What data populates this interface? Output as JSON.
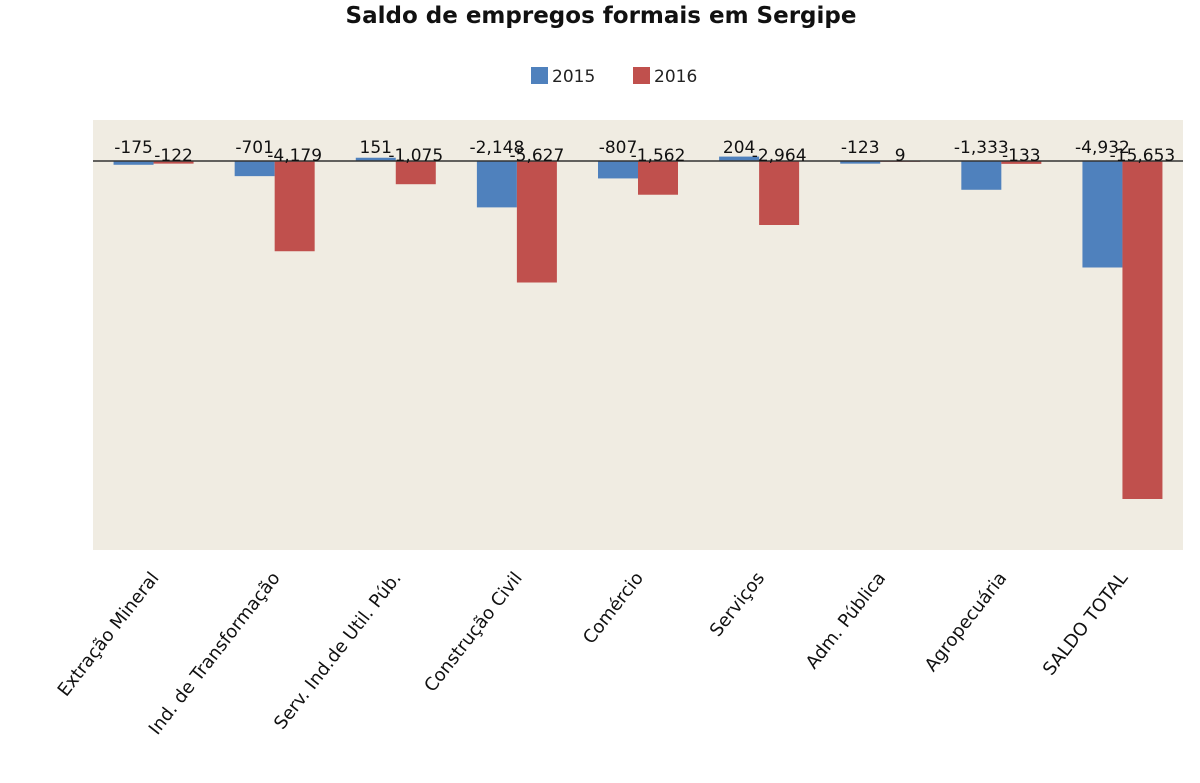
{
  "chart_data": {
    "type": "bar",
    "title": "Saldo de empregos formais em Sergipe",
    "xlabel": "",
    "ylabel": "",
    "categories": [
      "Extração Mineral",
      "Ind. de Transformação",
      "Serv. Ind.de Util. Púb.",
      "Construção Civil",
      "Comércio",
      "Serviços",
      "Adm. Pública",
      "Agropecuária",
      "SALDO TOTAL"
    ],
    "series": [
      {
        "name": "2015",
        "color": "#4f81bd",
        "values": [
          -175,
          -701,
          151,
          -2148,
          -807,
          204,
          -123,
          -1333,
          -4932
        ],
        "labels": [
          "-175",
          "-701",
          "151",
          "-2,148",
          "-807",
          "204",
          "-123",
          "-1,333",
          "-4,932"
        ]
      },
      {
        "name": "2016",
        "color": "#c0504d",
        "values": [
          -122,
          -4179,
          -1075,
          -5627,
          -1562,
          -2964,
          9,
          -133,
          -15653
        ],
        "labels": [
          "-122",
          "-4,179",
          "-1,075",
          "-5,627",
          "-1,562",
          "-2,964",
          "9",
          "-133",
          "-15,653"
        ]
      }
    ],
    "ylim": [
      -18000,
      0
    ],
    "grid": false,
    "legend_position": "top-center",
    "plot_background": "#f0ece2"
  }
}
